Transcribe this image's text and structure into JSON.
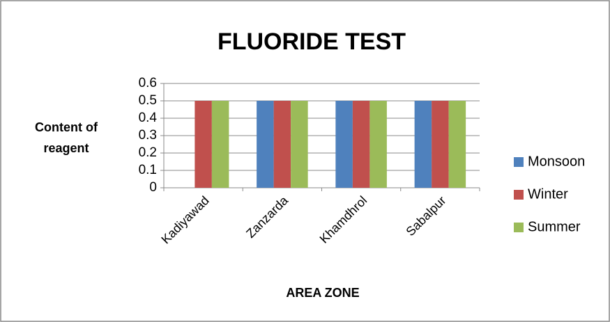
{
  "chart_data": {
    "type": "bar",
    "title": "FLUORIDE TEST",
    "x_label": "AREA ZONE",
    "y_label": "Content of reagent",
    "categories": [
      "Kadiyawad",
      "Zanzarda",
      "Khamdhrol",
      "Sabalpur"
    ],
    "series": [
      {
        "name": "Monsoon",
        "color": "#4f81bd",
        "values": [
          0,
          0.5,
          0.5,
          0.5
        ]
      },
      {
        "name": "Winter",
        "color": "#c0504d",
        "values": [
          0.5,
          0.5,
          0.5,
          0.5
        ]
      },
      {
        "name": "Summer",
        "color": "#9bbb59",
        "values": [
          0.5,
          0.5,
          0.5,
          0.5
        ]
      }
    ],
    "ylim": [
      0,
      0.6
    ],
    "yticks": [
      0,
      0.1,
      0.2,
      0.3,
      0.4,
      0.5,
      0.6
    ],
    "grid": true,
    "legend": "right"
  }
}
